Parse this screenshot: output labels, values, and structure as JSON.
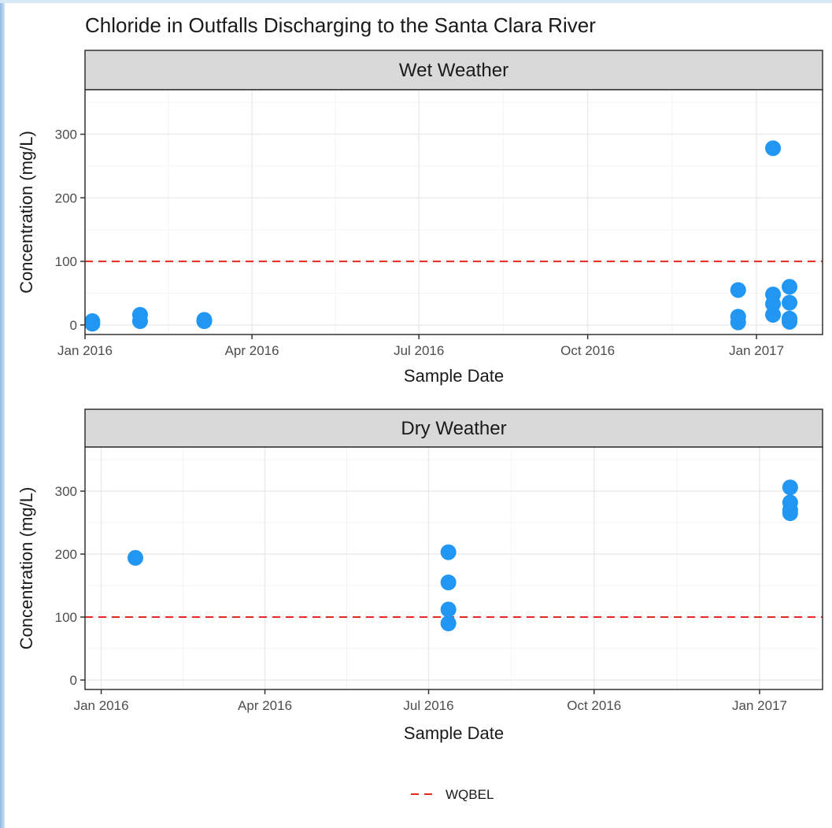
{
  "chart_data": {
    "type": "scatter",
    "title": "Chloride in Outfalls Discharging to the Santa Clara River",
    "colors": {
      "points": "#2196f3",
      "threshold": "#e8281f",
      "strip_bg": "#d9d9d9",
      "grid_major": "#ebebeb",
      "grid_minor": "#f5f5f5",
      "panel_border": "#333333"
    },
    "grid": true,
    "legend_position": "bottom",
    "legend": [
      {
        "label": "WQBEL",
        "style": "dashed-line",
        "color": "#e8281f"
      }
    ],
    "threshold": {
      "name": "WQBEL",
      "value": 100
    },
    "panels": [
      {
        "strip": "Wet Weather",
        "xlabel": "Sample Date",
        "ylabel": "Concentration (mg/L)",
        "xlim": [
          "2016-01-01",
          "2017-02-06"
        ],
        "ylim": [
          -15,
          370
        ],
        "y_ticks": [
          0,
          100,
          200,
          300
        ],
        "x_ticks": [
          {
            "date": "2016-01-01",
            "label": "Jan 2016"
          },
          {
            "date": "2016-04-01",
            "label": "Apr 2016"
          },
          {
            "date": "2016-07-01",
            "label": "Jul 2016"
          },
          {
            "date": "2016-10-01",
            "label": "Oct 2016"
          },
          {
            "date": "2017-01-01",
            "label": "Jan 2017"
          }
        ],
        "points": [
          {
            "x": "2016-01-05",
            "y": 2
          },
          {
            "x": "2016-01-05",
            "y": 6
          },
          {
            "x": "2016-01-31",
            "y": 6
          },
          {
            "x": "2016-01-31",
            "y": 16
          },
          {
            "x": "2016-03-06",
            "y": 6
          },
          {
            "x": "2016-03-06",
            "y": 8
          },
          {
            "x": "2016-12-22",
            "y": 4
          },
          {
            "x": "2016-12-22",
            "y": 13
          },
          {
            "x": "2016-12-22",
            "y": 55
          },
          {
            "x": "2017-01-10",
            "y": 16
          },
          {
            "x": "2017-01-10",
            "y": 33
          },
          {
            "x": "2017-01-10",
            "y": 48
          },
          {
            "x": "2017-01-10",
            "y": 278
          },
          {
            "x": "2017-01-19",
            "y": 5
          },
          {
            "x": "2017-01-19",
            "y": 10
          },
          {
            "x": "2017-01-19",
            "y": 35
          },
          {
            "x": "2017-01-19",
            "y": 60
          }
        ]
      },
      {
        "strip": "Dry Weather",
        "xlabel": "Sample Date",
        "ylabel": "Concentration (mg/L)",
        "xlim": [
          "2015-12-23",
          "2017-02-05"
        ],
        "ylim": [
          -15,
          370
        ],
        "y_ticks": [
          0,
          100,
          200,
          300
        ],
        "x_ticks": [
          {
            "date": "2016-01-01",
            "label": "Jan 2016"
          },
          {
            "date": "2016-04-01",
            "label": "Apr 2016"
          },
          {
            "date": "2016-07-01",
            "label": "Jul 2016"
          },
          {
            "date": "2016-10-01",
            "label": "Oct 2016"
          },
          {
            "date": "2017-01-01",
            "label": "Jan 2017"
          }
        ],
        "points": [
          {
            "x": "2016-01-20",
            "y": 194
          },
          {
            "x": "2016-07-12",
            "y": 90
          },
          {
            "x": "2016-07-12",
            "y": 112
          },
          {
            "x": "2016-07-12",
            "y": 155
          },
          {
            "x": "2016-07-12",
            "y": 203
          },
          {
            "x": "2017-01-18",
            "y": 265
          },
          {
            "x": "2017-01-18",
            "y": 270
          },
          {
            "x": "2017-01-18",
            "y": 282
          },
          {
            "x": "2017-01-18",
            "y": 306
          }
        ]
      }
    ]
  }
}
